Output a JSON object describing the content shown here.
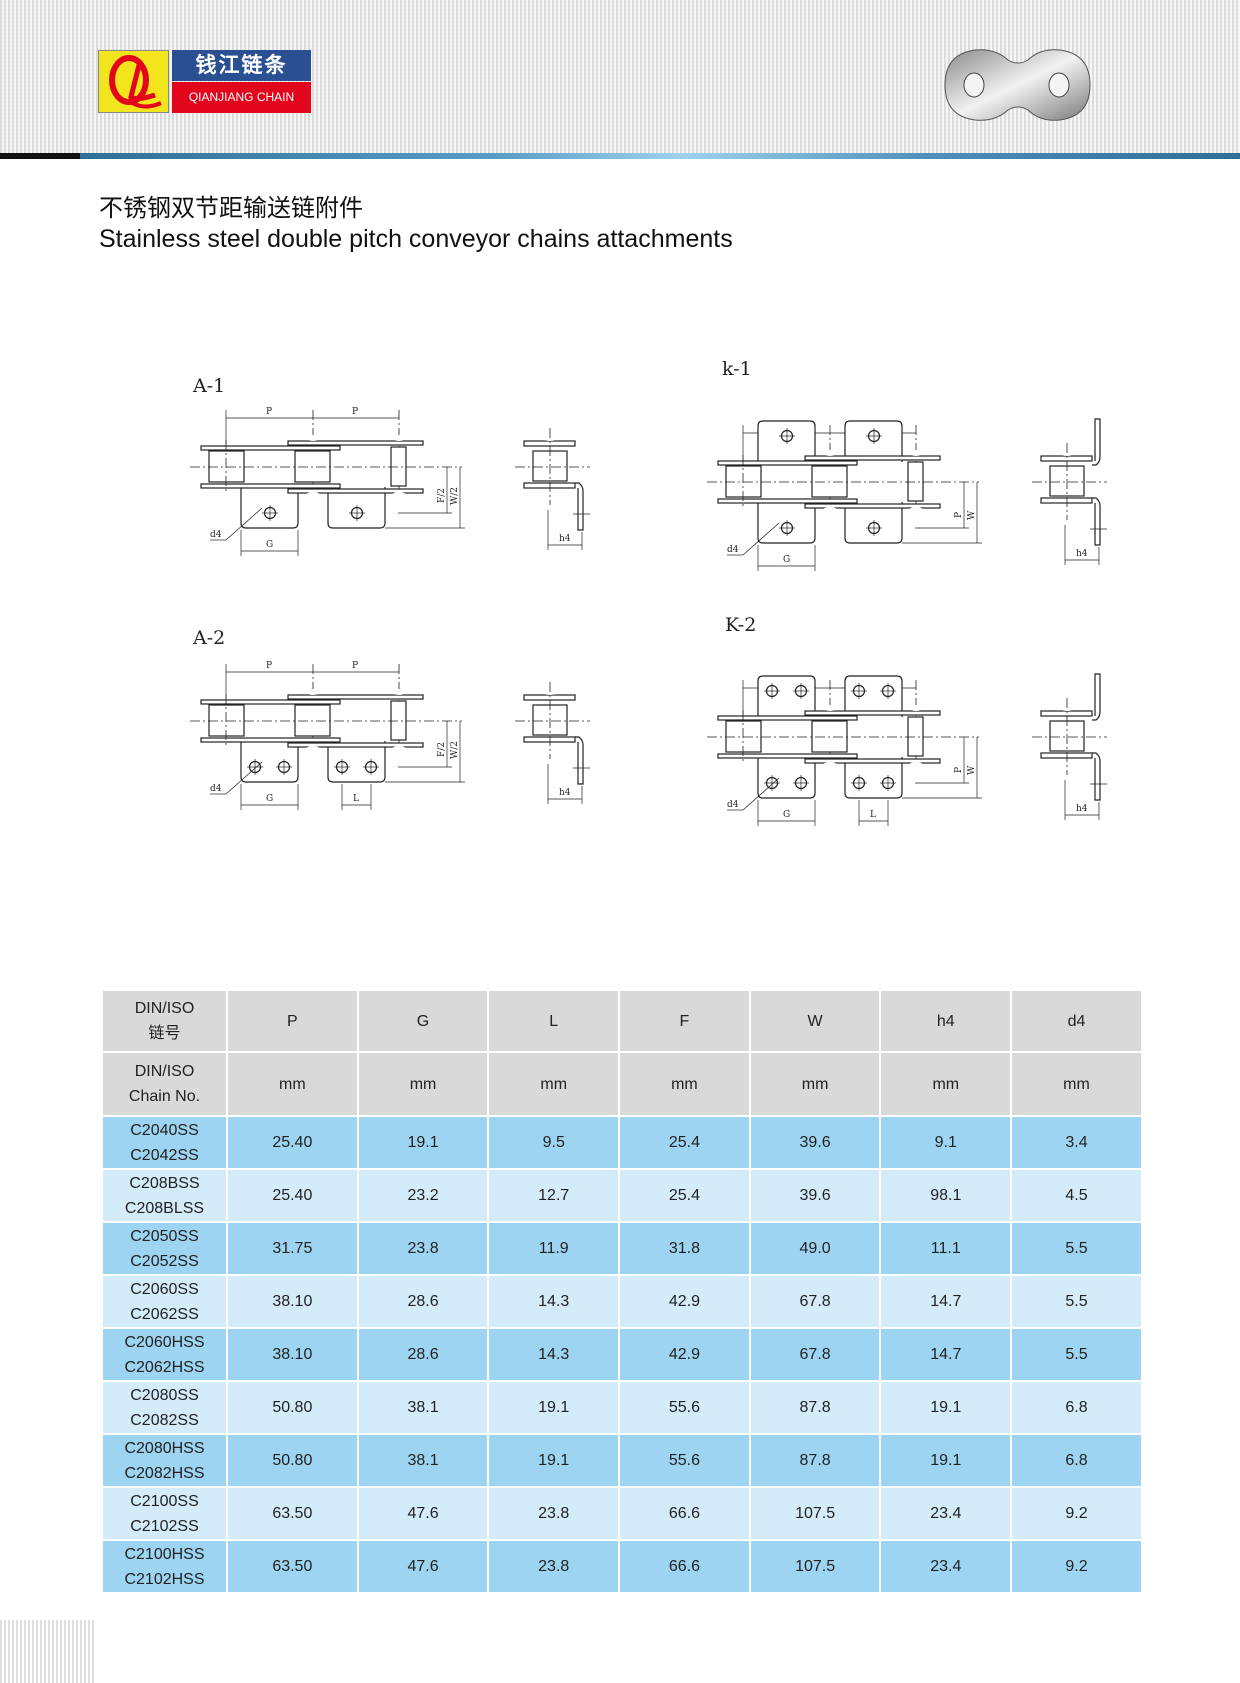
{
  "brand": {
    "name_cn": "钱江链条",
    "name_en": "QIANJIANG CHAIN",
    "logo_letters": "QL",
    "colors": {
      "yellow": "#f2e51d",
      "blue": "#2b4f93",
      "red": "#e3051b"
    }
  },
  "title": {
    "cn": "不锈钢双节距输送链附件",
    "en": "Stainless steel double pitch conveyor chains attachments"
  },
  "figures": [
    {
      "label": "A-1",
      "dims": {
        "P": "P",
        "F": "F/2",
        "W": "W/2",
        "G": "G",
        "d4": "d4",
        "h4": "h4"
      }
    },
    {
      "label": "k-1",
      "dims": {
        "P": "P",
        "F": "P",
        "W": "W",
        "G": "G",
        "d4": "d4",
        "h4": "h4"
      }
    },
    {
      "label": "A-2",
      "dims": {
        "P": "P",
        "F": "F/2",
        "W": "W/2",
        "G": "G",
        "L": "L",
        "d4": "d4",
        "h4": "h4"
      }
    },
    {
      "label": "K-2",
      "dims": {
        "P": "P",
        "F": "P",
        "W": "W",
        "G": "G",
        "L": "L",
        "d4": "d4",
        "h4": "h4"
      }
    }
  ],
  "table": {
    "header1": [
      "DIN/ISO\n链号",
      "P",
      "G",
      "L",
      "F",
      "W",
      "h4",
      "d4"
    ],
    "header2": [
      "DIN/ISO\nChain No.",
      "mm",
      "mm",
      "mm",
      "mm",
      "mm",
      "mm",
      "mm"
    ],
    "rows": [
      [
        "C2040SS\nC2042SS",
        "25.40",
        "19.1",
        "9.5",
        "25.4",
        "39.6",
        "9.1",
        "3.4"
      ],
      [
        "C208BSS\nC208BLSS",
        "25.40",
        "23.2",
        "12.7",
        "25.4",
        "39.6",
        "98.1",
        "4.5"
      ],
      [
        "C2050SS\nC2052SS",
        "31.75",
        "23.8",
        "11.9",
        "31.8",
        "49.0",
        "11.1",
        "5.5"
      ],
      [
        "C2060SS\nC2062SS",
        "38.10",
        "28.6",
        "14.3",
        "42.9",
        "67.8",
        "14.7",
        "5.5"
      ],
      [
        "C2060HSS\nC2062HSS",
        "38.10",
        "28.6",
        "14.3",
        "42.9",
        "67.8",
        "14.7",
        "5.5"
      ],
      [
        "C2080SS\nC2082SS",
        "50.80",
        "38.1",
        "19.1",
        "55.6",
        "87.8",
        "19.1",
        "6.8"
      ],
      [
        "C2080HSS\nC2082HSS",
        "50.80",
        "38.1",
        "19.1",
        "55.6",
        "87.8",
        "19.1",
        "6.8"
      ],
      [
        "C2100SS\nC2102SS",
        "63.50",
        "47.6",
        "23.8",
        "66.6",
        "107.5",
        "23.4",
        "9.2"
      ],
      [
        "C2100HSS\nC2102HSS",
        "63.50",
        "47.6",
        "23.8",
        "66.6",
        "107.5",
        "23.4",
        "9.2"
      ]
    ],
    "colors": {
      "header": "#d9d9d9",
      "row_dark": "#9dd4f1",
      "row_light": "#d4ecfa"
    }
  }
}
